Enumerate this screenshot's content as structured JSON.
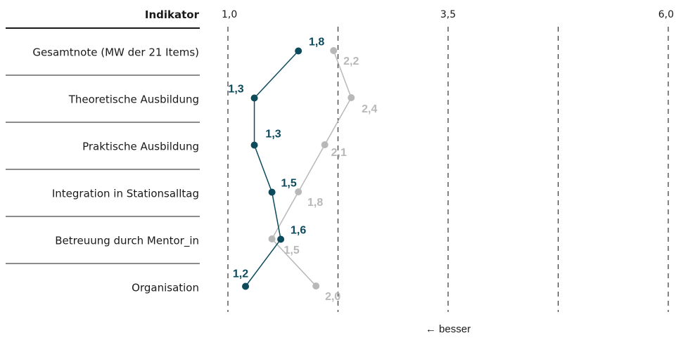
{
  "chart_data": {
    "type": "line",
    "orientation": "horizontal",
    "header": "Indikator",
    "categories": [
      "Gesamtnote (MW der 21 Items)",
      "Theoretische Ausbildung",
      "Praktische Ausbildung",
      "Integration in Stationsalltag",
      "Betreuung durch Mentor_in",
      "Organisation"
    ],
    "series": [
      {
        "values": [
          1.8,
          1.3,
          1.3,
          1.5,
          1.6,
          1.2
        ],
        "labels": [
          "1,8",
          "1,3",
          "1,3",
          "1,5",
          "1,6",
          "1,2"
        ],
        "color": "#0d4a5c"
      },
      {
        "values": [
          2.2,
          2.4,
          2.1,
          1.8,
          1.5,
          2.0
        ],
        "labels": [
          "2,2",
          "2,4",
          "2,1",
          "1,8",
          "1,5",
          "2,0"
        ],
        "color": "#b8b8b8"
      }
    ],
    "xlim": [
      1.0,
      6.0
    ],
    "xticks": [
      1.0,
      3.5,
      6.0
    ],
    "xtick_labels": [
      "1,0",
      "3,5",
      "6,0"
    ],
    "grid_values": [
      1.0,
      2.25,
      3.5,
      4.75,
      6.0
    ],
    "grid": true,
    "grid_style": "dashed",
    "note": "← besser"
  }
}
